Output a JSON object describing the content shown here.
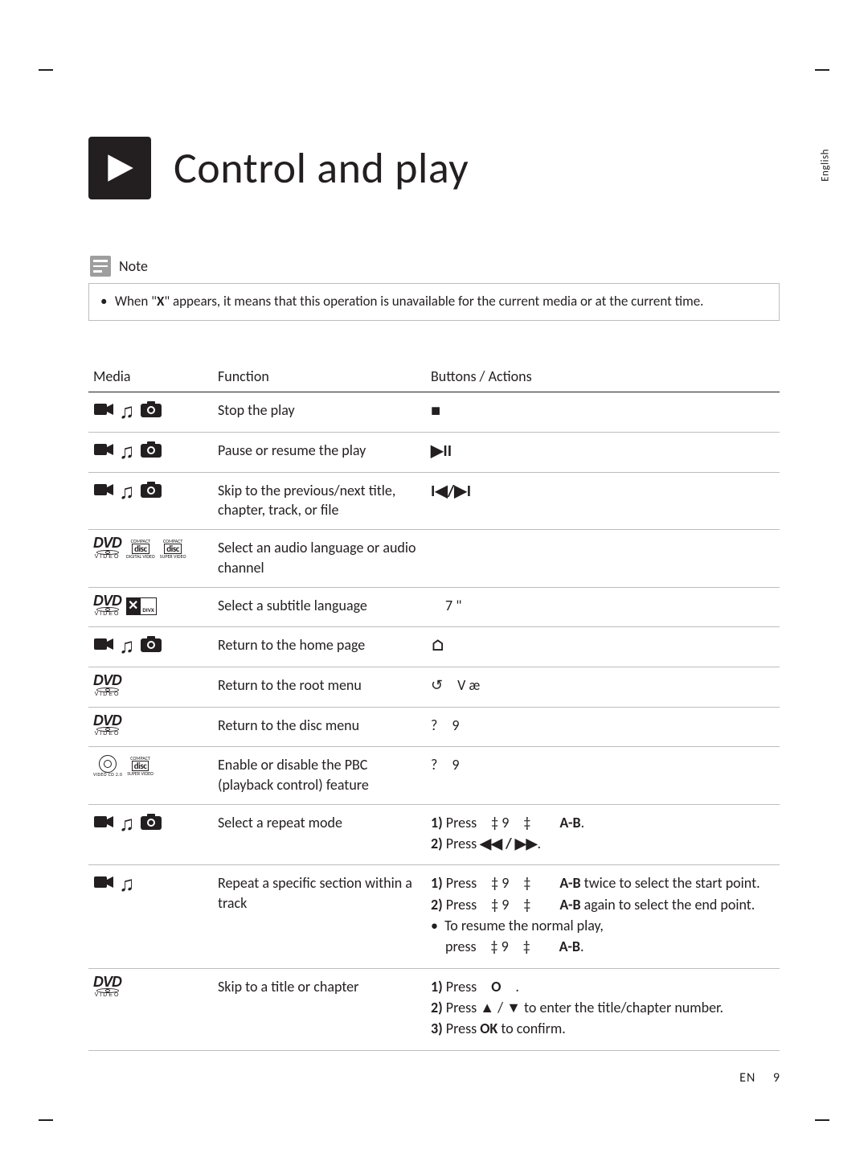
{
  "meta": {
    "side_label": "English",
    "footer_lang": "EN",
    "footer_page": "9"
  },
  "title": "Control and play",
  "note": {
    "label": "Note",
    "text_prefix": "When \"",
    "text_symbol": "X",
    "text_suffix": "\" appears, it means that this operation is unavailable for the current media or at the current time."
  },
  "headers": {
    "media": "Media",
    "function": "Function",
    "actions": "Buttons / Actions"
  },
  "rows": [
    {
      "media": "vmp",
      "fn": "Stop the play",
      "act_type": "symbol",
      "sym": "■"
    },
    {
      "media": "vmp",
      "fn": "Pause or resume the play",
      "act_type": "symbol",
      "sym": "▶II"
    },
    {
      "media": "vmp",
      "fn": "Skip to the previous/next title, chapter, track, or file",
      "act_type": "symbol",
      "sym": "I◀/▶I"
    },
    {
      "media": "dvd_vcd_svcd",
      "fn": "Select an audio language or audio channel",
      "act_type": "text",
      "text": ""
    },
    {
      "media": "dvd_divx",
      "fn": "Select a subtitle language",
      "act_type": "text",
      "text": "　7 \""
    },
    {
      "media": "vmp",
      "fn": "Return to the home page",
      "act_type": "symbol",
      "sym": "⌂"
    },
    {
      "media": "dvd",
      "fn": "Return to the root menu",
      "act_type": "text",
      "text": "↺　V æ"
    },
    {
      "media": "dvd",
      "fn": "Return to the disc menu",
      "act_type": "text",
      "text": "?　9"
    },
    {
      "media": "vcd_svcd",
      "fn": "Enable or disable the PBC (playback control) feature",
      "act_type": "text",
      "text": "?　9"
    },
    {
      "media": "vmp",
      "fn": "Select a repeat mode",
      "act_type": "repeat",
      "l1a": "1)",
      "l1b": "Press",
      "l1c": "‡ 9　‡",
      "l1d": "A-B",
      "l1e": ".",
      "l2a": "2)",
      "l2b": "Press",
      "l2c": "◀◀ / ▶▶",
      "l2d": "."
    },
    {
      "media": "vm",
      "fn": "Repeat a specific section within a track",
      "act_type": "abrepeat",
      "r1a": "1)",
      "r1b": "Press",
      "r1c": "‡ 9　‡",
      "r1d": "A-B",
      "r1e": " twice to select the start point.",
      "r2a": "2)",
      "r2b": "Press",
      "r2c": "‡ 9　‡",
      "r2d": "A-B",
      "r2e": " again to select the end point.",
      "r3": "To resume the normal play,",
      "r4a": "press",
      "r4b": "‡ 9　‡",
      "r4c": "A-B",
      "r4d": "."
    },
    {
      "media": "dvd",
      "fn": "Skip to a title or chapter",
      "act_type": "goto",
      "g1a": "1)",
      "g1b": "Press",
      "g1c": "O",
      "g1d": ".",
      "g2a": "2)",
      "g2b": "Press ▲ / ▼ to enter the title/chapter number.",
      "g3a": "3)",
      "g3b": "Press",
      "g3c": "OK",
      "g3d": "to confirm."
    }
  ]
}
